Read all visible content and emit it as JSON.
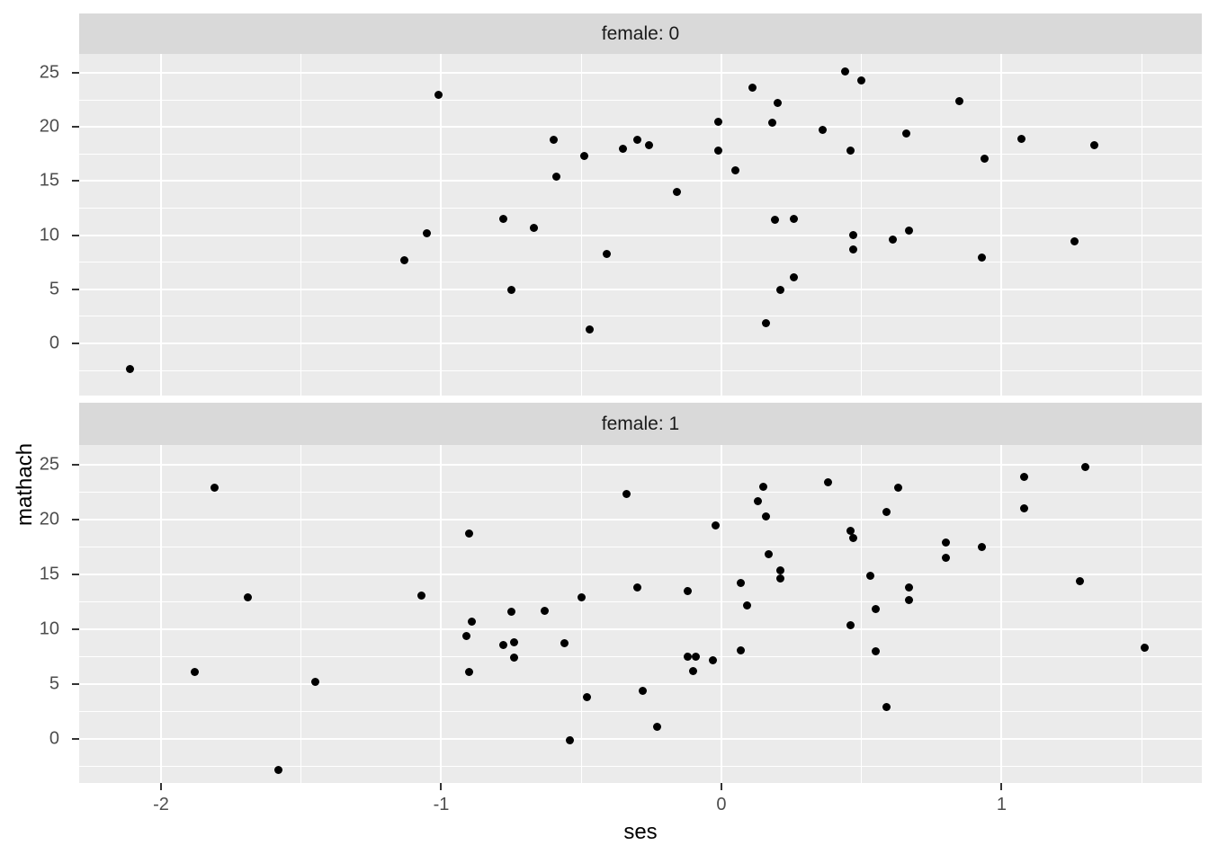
{
  "chart_data": {
    "type": "scatter",
    "title": "",
    "xlabel": "ses",
    "ylabel": "mathach",
    "x_ticks": [
      {
        "value": -2,
        "label": "-2"
      },
      {
        "value": -1,
        "label": "-1"
      },
      {
        "value": 0,
        "label": "0"
      },
      {
        "value": 1,
        "label": "1"
      }
    ],
    "y_ticks": [
      {
        "value": 0,
        "label": "0"
      },
      {
        "value": 5,
        "label": "5"
      },
      {
        "value": 10,
        "label": "10"
      },
      {
        "value": 15,
        "label": "15"
      },
      {
        "value": 20,
        "label": "20"
      },
      {
        "value": 25,
        "label": "25"
      }
    ],
    "x_minor": [
      -1.5,
      -0.5,
      0.5,
      1.5
    ],
    "y_minor": [
      -2.5,
      2.5,
      7.5,
      12.5,
      17.5,
      22.5
    ],
    "x_range": [
      -2.29,
      1.71
    ],
    "y_range": [
      -4.8,
      26.8
    ],
    "grid": "on",
    "legend": "none",
    "facet_variable": "female",
    "facets": [
      {
        "label": "female: 0",
        "points": [
          [
            -2.11,
            -2.4
          ],
          [
            -1.13,
            7.7
          ],
          [
            -1.05,
            10.2
          ],
          [
            -1.01,
            23.0
          ],
          [
            0.11,
            23.6
          ],
          [
            0.2,
            22.2
          ],
          [
            -0.01,
            20.5
          ],
          [
            0.18,
            20.4
          ],
          [
            0.36,
            19.7
          ],
          [
            -0.6,
            18.8
          ],
          [
            -0.35,
            18.0
          ],
          [
            -0.3,
            18.8
          ],
          [
            -0.26,
            18.3
          ],
          [
            -0.49,
            17.3
          ],
          [
            -0.59,
            15.4
          ],
          [
            -0.01,
            17.8
          ],
          [
            0.05,
            16.0
          ],
          [
            -0.16,
            14.0
          ],
          [
            -0.78,
            11.5
          ],
          [
            -0.67,
            10.7
          ],
          [
            0.19,
            11.4
          ],
          [
            0.26,
            11.5
          ],
          [
            -0.41,
            8.3
          ],
          [
            0.26,
            6.1
          ],
          [
            0.21,
            4.9
          ],
          [
            -0.75,
            4.9
          ],
          [
            0.16,
            1.9
          ],
          [
            -0.47,
            1.3
          ],
          [
            0.44,
            25.1
          ],
          [
            0.5,
            24.3
          ],
          [
            0.85,
            22.4
          ],
          [
            0.66,
            19.4
          ],
          [
            1.07,
            18.9
          ],
          [
            1.33,
            18.3
          ],
          [
            0.46,
            17.8
          ],
          [
            0.94,
            17.1
          ],
          [
            0.47,
            10.0
          ],
          [
            0.67,
            10.4
          ],
          [
            0.61,
            9.6
          ],
          [
            0.47,
            8.7
          ],
          [
            1.26,
            9.4
          ],
          [
            0.93,
            7.9
          ]
        ]
      },
      {
        "label": "female: 1",
        "points": [
          [
            -1.81,
            22.9
          ],
          [
            -1.69,
            12.9
          ],
          [
            -1.07,
            13.1
          ],
          [
            -1.88,
            6.1
          ],
          [
            -1.45,
            5.2
          ],
          [
            -1.58,
            -2.8
          ],
          [
            -0.34,
            22.3
          ],
          [
            -0.9,
            18.7
          ],
          [
            -0.02,
            19.5
          ],
          [
            -0.3,
            13.8
          ],
          [
            -0.12,
            13.5
          ],
          [
            -0.5,
            12.9
          ],
          [
            -0.75,
            11.6
          ],
          [
            -0.63,
            11.7
          ],
          [
            -0.89,
            10.7
          ],
          [
            -0.91,
            9.4
          ],
          [
            -0.78,
            8.6
          ],
          [
            -0.74,
            8.8
          ],
          [
            -0.74,
            7.4
          ],
          [
            -0.56,
            8.7
          ],
          [
            -0.9,
            6.1
          ],
          [
            -0.12,
            7.5
          ],
          [
            -0.09,
            7.5
          ],
          [
            -0.1,
            6.2
          ],
          [
            -0.03,
            7.2
          ],
          [
            -0.28,
            4.4
          ],
          [
            -0.48,
            3.8
          ],
          [
            -0.23,
            1.1
          ],
          [
            -0.54,
            -0.1
          ],
          [
            0.15,
            23.0
          ],
          [
            0.13,
            21.7
          ],
          [
            0.16,
            20.3
          ],
          [
            0.38,
            23.4
          ],
          [
            0.17,
            16.8
          ],
          [
            0.21,
            15.4
          ],
          [
            0.21,
            14.6
          ],
          [
            0.07,
            14.2
          ],
          [
            0.09,
            12.2
          ],
          [
            0.07,
            8.1
          ],
          [
            1.3,
            24.8
          ],
          [
            1.08,
            23.9
          ],
          [
            0.63,
            22.9
          ],
          [
            0.59,
            20.7
          ],
          [
            1.08,
            21.0
          ],
          [
            0.46,
            19.0
          ],
          [
            0.47,
            18.3
          ],
          [
            0.8,
            17.9
          ],
          [
            0.93,
            17.5
          ],
          [
            0.8,
            16.5
          ],
          [
            0.53,
            14.9
          ],
          [
            1.28,
            14.4
          ],
          [
            0.67,
            13.8
          ],
          [
            0.67,
            12.7
          ],
          [
            0.55,
            11.8
          ],
          [
            0.46,
            10.4
          ],
          [
            0.55,
            8.0
          ],
          [
            1.51,
            8.3
          ],
          [
            0.59,
            2.9
          ]
        ]
      }
    ],
    "colors": {
      "background": "#FFFFFF",
      "panel_bg": "#EBEBEB",
      "strip_bg": "#D9D9D9",
      "gridline": "#FFFFFF",
      "point": "#000000",
      "tick_text": "#4D4D4D",
      "axis_title_text": "#000000",
      "strip_text": "#1A1A1A"
    }
  }
}
